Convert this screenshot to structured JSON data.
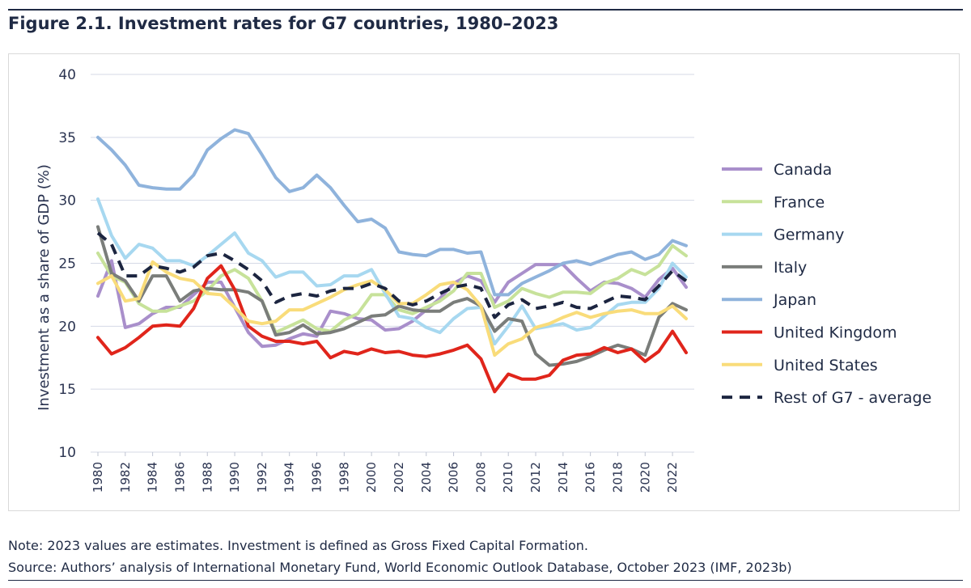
{
  "figure": {
    "title": "Figure 2.1. Investment rates for G7 countries, 1980–2023",
    "note": "Note: 2023 values are estimates. Investment is defined as Gross Fixed Capital Formation.",
    "source": "Source: Authors’ analysis of International Monetary Fund, World Economic Outlook Database, October 2023 (IMF, 2023b)"
  },
  "chart_data": {
    "type": "line",
    "title": "",
    "xlabel": "",
    "ylabel": "Investment as a share of GDP (%)",
    "ylim": [
      10,
      40
    ],
    "yticks": [
      10,
      15,
      20,
      25,
      30,
      35,
      40
    ],
    "xticks": [
      1980,
      1982,
      1984,
      1986,
      1988,
      1990,
      1992,
      1994,
      1996,
      1998,
      2000,
      2002,
      2004,
      2006,
      2008,
      2010,
      2012,
      2014,
      2016,
      2018,
      2020,
      2022
    ],
    "grid": true,
    "legend_position": "right",
    "x": [
      1980,
      1981,
      1982,
      1983,
      1984,
      1985,
      1986,
      1987,
      1988,
      1989,
      1990,
      1991,
      1992,
      1993,
      1994,
      1995,
      1996,
      1997,
      1998,
      1999,
      2000,
      2001,
      2002,
      2003,
      2004,
      2005,
      2006,
      2007,
      2008,
      2009,
      2010,
      2011,
      2012,
      2013,
      2014,
      2015,
      2016,
      2017,
      2018,
      2019,
      2020,
      2021,
      2022,
      2023
    ],
    "series": [
      {
        "name": "Canada",
        "color": "#a98fcb",
        "dashed": false,
        "values": [
          22.4,
          25.2,
          19.9,
          20.2,
          21.0,
          21.5,
          21.5,
          22.5,
          23.5,
          23.5,
          21.5,
          19.5,
          18.4,
          18.5,
          19.0,
          19.4,
          19.2,
          21.2,
          21.0,
          20.6,
          20.5,
          19.7,
          19.8,
          20.4,
          21.3,
          22.2,
          23.4,
          24.0,
          23.6,
          21.9,
          23.5,
          24.2,
          24.9,
          24.9,
          24.9,
          23.8,
          22.8,
          23.5,
          23.4,
          23.0,
          22.3,
          23.7,
          24.6,
          23.1
        ]
      },
      {
        "name": "France",
        "color": "#c7e29a",
        "dashed": false,
        "values": [
          25.8,
          24.0,
          23.5,
          21.8,
          21.2,
          21.2,
          21.6,
          22.0,
          22.8,
          24.0,
          24.5,
          23.8,
          22.0,
          19.5,
          20.0,
          20.5,
          19.8,
          19.6,
          20.5,
          21.0,
          22.5,
          22.5,
          21.3,
          21.0,
          21.5,
          22.0,
          22.8,
          24.2,
          24.2,
          21.5,
          22.0,
          23.0,
          22.6,
          22.3,
          22.7,
          22.7,
          22.6,
          23.4,
          23.8,
          24.5,
          24.1,
          24.8,
          26.4,
          25.6
        ]
      },
      {
        "name": "Germany",
        "color": "#a7d8f0",
        "dashed": false,
        "values": [
          30.1,
          27.2,
          25.4,
          26.5,
          26.2,
          25.2,
          25.2,
          24.8,
          25.6,
          26.5,
          27.4,
          25.8,
          25.2,
          23.9,
          24.3,
          24.3,
          23.2,
          23.3,
          24.0,
          24.0,
          24.5,
          22.6,
          20.8,
          20.6,
          19.9,
          19.5,
          20.6,
          21.4,
          21.5,
          18.6,
          20.0,
          21.6,
          19.8,
          20.0,
          20.2,
          19.7,
          19.9,
          20.8,
          21.7,
          21.9,
          21.9,
          23.0,
          25.0,
          23.9
        ]
      },
      {
        "name": "Italy",
        "color": "#7a7d7a",
        "dashed": false,
        "values": [
          27.9,
          24.2,
          23.6,
          22.0,
          24.0,
          24.0,
          22.0,
          22.8,
          23.0,
          22.9,
          22.9,
          22.7,
          22.0,
          19.3,
          19.5,
          20.1,
          19.4,
          19.5,
          19.8,
          20.3,
          20.8,
          20.9,
          21.6,
          21.3,
          21.2,
          21.2,
          21.9,
          22.2,
          21.6,
          19.6,
          20.6,
          20.4,
          17.8,
          16.9,
          17.0,
          17.2,
          17.6,
          18.1,
          18.5,
          18.2,
          17.7,
          20.7,
          21.8,
          21.3
        ]
      },
      {
        "name": "Japan",
        "color": "#8fb3dc",
        "dashed": false,
        "values": [
          35.0,
          34.0,
          32.8,
          31.2,
          31.0,
          30.9,
          30.9,
          32.0,
          34.0,
          34.9,
          35.6,
          35.3,
          33.6,
          31.8,
          30.7,
          31.0,
          32.0,
          31.0,
          29.6,
          28.3,
          28.5,
          27.8,
          25.9,
          25.7,
          25.6,
          26.1,
          26.1,
          25.8,
          25.9,
          22.5,
          22.5,
          23.4,
          23.9,
          24.4,
          25.0,
          25.2,
          24.9,
          25.3,
          25.7,
          25.9,
          25.3,
          25.7,
          26.8,
          26.4
        ]
      },
      {
        "name": "United Kingdom",
        "color": "#e0251b",
        "dashed": false,
        "values": [
          19.1,
          17.8,
          18.3,
          19.1,
          20.0,
          20.1,
          20.0,
          21.4,
          23.8,
          24.8,
          22.9,
          20.0,
          19.2,
          18.8,
          18.8,
          18.6,
          18.8,
          17.5,
          18.0,
          17.8,
          18.2,
          17.9,
          18.0,
          17.7,
          17.6,
          17.8,
          18.1,
          18.5,
          17.4,
          14.8,
          16.2,
          15.8,
          15.8,
          16.1,
          17.3,
          17.7,
          17.8,
          18.3,
          17.9,
          18.2,
          17.2,
          18.0,
          19.6,
          17.9
        ]
      },
      {
        "name": "United States",
        "color": "#f9dc7a",
        "dashed": false,
        "values": [
          23.4,
          24.0,
          22.0,
          22.2,
          25.1,
          24.3,
          23.8,
          23.6,
          22.6,
          22.5,
          21.5,
          20.4,
          20.2,
          20.4,
          21.3,
          21.3,
          21.8,
          22.3,
          22.9,
          23.3,
          23.6,
          22.9,
          21.8,
          21.8,
          22.5,
          23.3,
          23.5,
          22.9,
          21.6,
          17.7,
          18.6,
          19.0,
          19.9,
          20.2,
          20.7,
          21.1,
          20.7,
          21.0,
          21.2,
          21.3,
          21.0,
          21.0,
          21.6,
          20.6
        ]
      },
      {
        "name": "Rest of G7 - average",
        "color": "#1c2540",
        "dashed": true,
        "values": [
          27.4,
          26.5,
          24.0,
          24.0,
          24.8,
          24.6,
          24.3,
          24.7,
          25.6,
          25.8,
          25.2,
          24.5,
          23.6,
          21.9,
          22.4,
          22.6,
          22.4,
          22.8,
          23.0,
          23.0,
          23.4,
          23.0,
          22.0,
          21.7,
          22.0,
          22.6,
          23.1,
          23.3,
          23.0,
          20.7,
          21.7,
          22.1,
          21.4,
          21.6,
          21.9,
          21.5,
          21.4,
          21.9,
          22.4,
          22.3,
          22.1,
          23.2,
          24.4,
          23.6
        ]
      }
    ]
  }
}
